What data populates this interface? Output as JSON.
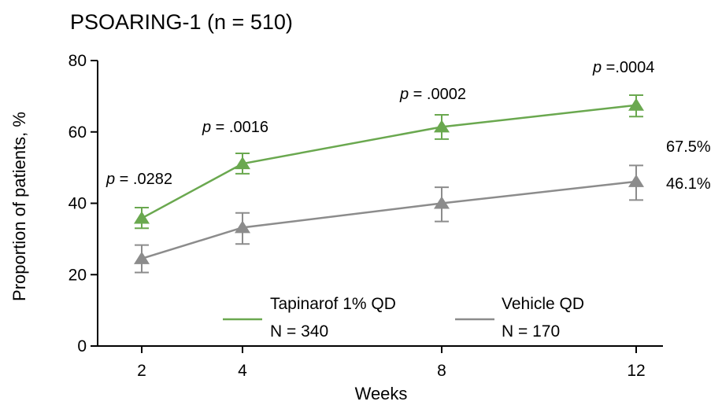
{
  "chart_data": {
    "type": "line",
    "title": "PSOARING-1 (n = 510)",
    "xlabel": "Weeks",
    "ylabel": "Proportion of patients, %",
    "x": [
      2,
      4,
      8,
      12
    ],
    "x_ticks": [
      "2",
      "4",
      "8",
      "12"
    ],
    "y_ticks": [
      "0",
      "20",
      "40",
      "60",
      "80"
    ],
    "ylim": [
      0,
      80
    ],
    "grid": false,
    "legend_position": "bottom-center",
    "series": [
      {
        "name": "Tapinarof 1% QD",
        "legend_n": "N = 340",
        "color": "#6aa84f",
        "marker": "triangle",
        "values": [
          35.8,
          51.1,
          61.4,
          67.5
        ],
        "error_low": [
          33.0,
          48.3,
          58.0,
          64.3
        ],
        "error_high": [
          38.8,
          54.0,
          64.8,
          70.3
        ],
        "end_label": "67.5%",
        "p_values": [
          {
            "prefix": "p",
            "text": " = .0282"
          },
          {
            "prefix": "p",
            "text": " = .0016"
          },
          {
            "prefix": "p",
            "text": " = .0002"
          },
          {
            "prefix": "p",
            "text": " =.0004"
          }
        ]
      },
      {
        "name": "Vehicle QD",
        "legend_n": "N = 170",
        "color": "#8c8c8c",
        "marker": "triangle",
        "values": [
          24.5,
          33.2,
          40.0,
          46.1
        ],
        "error_low": [
          20.6,
          28.6,
          34.9,
          40.9
        ],
        "error_high": [
          28.3,
          37.3,
          44.5,
          50.6
        ],
        "end_label": "46.1%"
      }
    ]
  }
}
